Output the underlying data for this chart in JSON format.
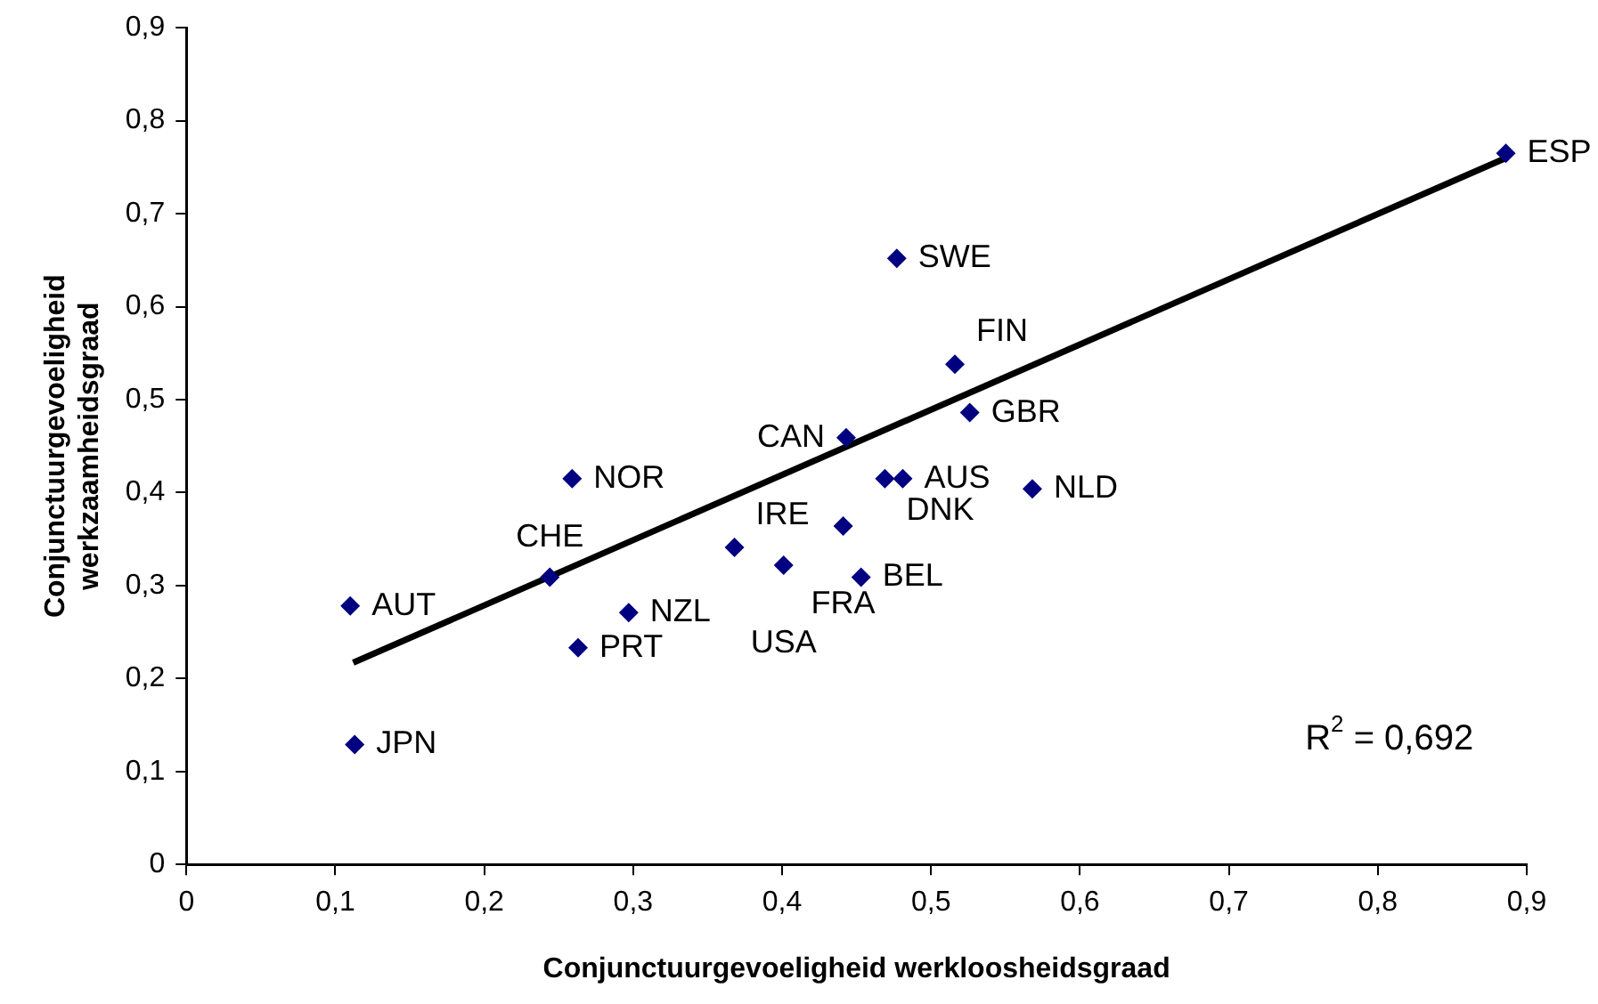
{
  "chart_data": {
    "type": "scatter",
    "xlabel": "Conjunctuurgevoeligheid werkloosheidsgraad",
    "ylabel": "Conjunctuurgevoeligheid werkzaamheidsgraad",
    "xlim": [
      0,
      0.9
    ],
    "xticks": [
      0,
      {
        "value": 0.1,
        "label": "0,1"
      },
      {
        "value": 0.2,
        "label": "0,2"
      },
      {
        "value": 0.3,
        "label": "0,3"
      },
      {
        "value": 0.4,
        "label": "0,4"
      },
      {
        "value": 0.5,
        "label": "0,5"
      },
      {
        "value": 0.6,
        "label": "0,6"
      },
      {
        "value": 0.7,
        "label": "0,7"
      },
      {
        "value": 0.8,
        "label": "0,8"
      },
      {
        "value": 0.9,
        "label": "0,9"
      }
    ],
    "ylim": [
      0,
      0.9
    ],
    "yticks": [
      0,
      {
        "value": 0.1,
        "label": "0,1"
      },
      {
        "value": 0.2,
        "label": "0,2"
      },
      {
        "value": 0.3,
        "label": "0,3"
      },
      {
        "value": 0.4,
        "label": "0,4"
      },
      {
        "value": 0.5,
        "label": "0,5"
      },
      {
        "value": 0.6,
        "label": "0,6"
      },
      {
        "value": 0.7,
        "label": "0,7"
      },
      {
        "value": 0.8,
        "label": "0,8"
      },
      {
        "value": 0.9,
        "label": "0,9"
      }
    ],
    "grid": false,
    "legend": false,
    "marker": "diamond",
    "series": [
      {
        "type": "scatter",
        "color": "#000080",
        "x": [
          0.886,
          0.477,
          0.516,
          0.526,
          0.443,
          0.469,
          0.481,
          0.568,
          0.259,
          0.368,
          0.401,
          0.441,
          0.453,
          0.244,
          0.11,
          0.297,
          0.263,
          0.113
        ],
        "values": [
          0.765,
          0.652,
          0.538,
          0.486,
          0.459,
          0.415,
          0.415,
          0.404,
          0.415,
          0.341,
          0.322,
          0.364,
          0.309,
          0.309,
          0.278,
          0.271,
          0.233,
          0.129
        ]
      },
      {
        "type": "line",
        "color": "#000000",
        "marker": "none",
        "x": [
          0.112,
          0.886
        ],
        "values": [
          0.217,
          0.76
        ]
      }
    ],
    "annotations": [
      {
        "text": "ESP",
        "x": 0.886,
        "y": 0.765
      },
      {
        "text": "SWE",
        "x": 0.477,
        "y": 0.652
      },
      {
        "text": "FIN",
        "x": 0.516,
        "y": 0.538
      },
      {
        "text": "GBR",
        "x": 0.526,
        "y": 0.486
      },
      {
        "text": "CAN",
        "x": 0.443,
        "y": 0.459
      },
      {
        "text": "DNK",
        "x": 0.469,
        "y": 0.415
      },
      {
        "text": "AUS",
        "x": 0.481,
        "y": 0.415
      },
      {
        "text": "NLD",
        "x": 0.568,
        "y": 0.404
      },
      {
        "text": "NOR",
        "x": 0.259,
        "y": 0.415
      },
      {
        "text": "IRE",
        "x": 0.368,
        "y": 0.341
      },
      {
        "text": "FRA",
        "x": 0.441,
        "y": 0.364
      },
      {
        "text": "CHE",
        "x": 0.244,
        "y": 0.309
      },
      {
        "text": "AUT",
        "x": 0.11,
        "y": 0.278
      },
      {
        "text": "NZL",
        "x": 0.297,
        "y": 0.271
      },
      {
        "text": "USA",
        "x": 0.401,
        "y": 0.322
      },
      {
        "text": "BEL",
        "x": 0.453,
        "y": 0.309
      },
      {
        "text": "PRT",
        "x": 0.263,
        "y": 0.233
      },
      {
        "text": "JPN",
        "x": 0.113,
        "y": 0.129
      },
      "R$^{2}$ = 0,692"
    ]
  }
}
